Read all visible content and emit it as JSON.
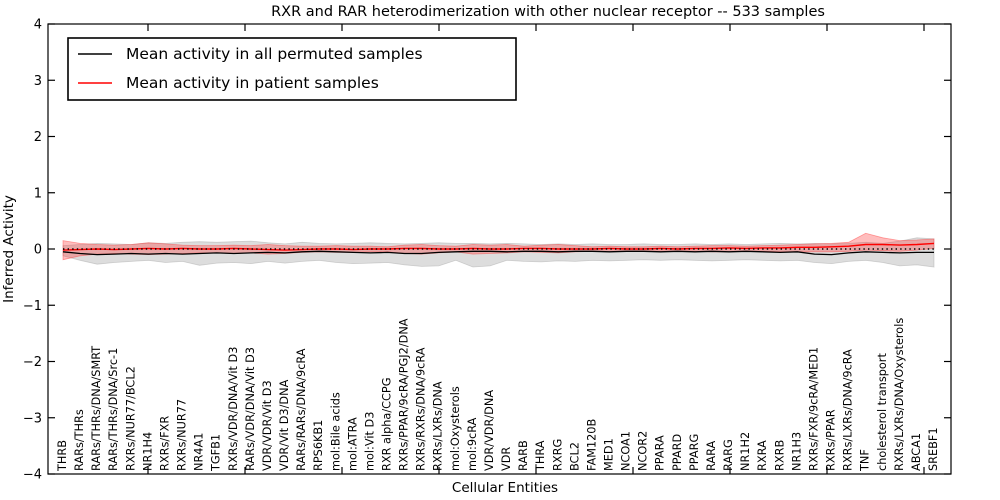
{
  "chart_data": {
    "type": "line",
    "title": "RXR and RAR heterodimerization with other nuclear receptor -- 533 samples",
    "xlabel": "Cellular Entities",
    "ylabel": "Inferred Activity",
    "ylim": [
      -4,
      4
    ],
    "yticks": [
      -4,
      -3,
      -2,
      -1,
      0,
      1,
      2,
      3,
      4
    ],
    "grid": false,
    "legend_position": "upper left",
    "categories": [
      "THRB",
      "RARs/THRs",
      "RARs/THRs/DNA/SMRT",
      "RARs/THRs/DNA/Src-1",
      "RXRs/NUR77/BCL2",
      "NR1H4",
      "RXRs/FXR",
      "RXRs/NUR77",
      "NR4A1",
      "TGFB1",
      "RXRs/VDR/DNA/Vit D3",
      "RARs/VDR/DNA/Vit D3",
      "VDR/VDR/Vit D3",
      "VDR/Vit D3/DNA",
      "RARs/RARs/DNA/9cRA",
      "RPS6KB1",
      "mol:Bile acids",
      "mol:ATRA",
      "mol:Vit D3",
      "RXR alpha/CCPG",
      "RXRs/PPAR/9cRA/PGJ2/DNA",
      "RXRs/RXRs/DNA/9cRA",
      "RXRs/LXRs/DNA",
      "mol:Oxysterols",
      "mol:9cRA",
      "VDR/VDR/DNA",
      "VDR",
      "RARB",
      "THRA",
      "RXRG",
      "BCL2",
      "FAM120B",
      "MED1",
      "NCOA1",
      "NCOR2",
      "PPARA",
      "PPARD",
      "PPARG",
      "RARA",
      "RARG",
      "NR1H2",
      "RXRA",
      "RXRB",
      "NR1H3",
      "RXRs/FXR/9cRA/MED1",
      "RXRs/PPAR",
      "RXRs/LXRs/DNA/9cRA",
      "TNF",
      "cholesterol transport",
      "RXRs/LXRs/DNA/Oxysterols",
      "ABCA1",
      "SREBF1"
    ],
    "series": [
      {
        "name": "Mean activity in all permuted samples",
        "color": "#000000",
        "values": [
          -0.05,
          -0.08,
          -0.1,
          -0.09,
          -0.08,
          -0.09,
          -0.08,
          -0.09,
          -0.08,
          -0.07,
          -0.08,
          -0.07,
          -0.06,
          -0.07,
          -0.05,
          -0.04,
          -0.05,
          -0.06,
          -0.07,
          -0.06,
          -0.08,
          -0.08,
          -0.06,
          -0.05,
          -0.04,
          -0.04,
          -0.05,
          -0.04,
          -0.04,
          -0.05,
          -0.04,
          -0.04,
          -0.05,
          -0.04,
          -0.04,
          -0.05,
          -0.04,
          -0.05,
          -0.04,
          -0.05,
          -0.04,
          -0.05,
          -0.06,
          -0.05,
          -0.09,
          -0.1,
          -0.07,
          -0.05,
          -0.06,
          -0.07,
          -0.06,
          -0.06
        ],
        "band": {
          "upper": [
            0.06,
            0.08,
            0.1,
            0.09,
            0.08,
            0.11,
            0.1,
            0.12,
            0.13,
            0.12,
            0.13,
            0.14,
            0.11,
            0.09,
            0.12,
            0.1,
            0.09,
            0.1,
            0.11,
            0.1,
            0.09,
            0.1,
            0.11,
            0.1,
            0.1,
            0.09,
            0.1,
            0.09,
            0.08,
            0.09,
            0.08,
            0.09,
            0.08,
            0.08,
            0.09,
            0.08,
            0.08,
            0.09,
            0.08,
            0.09,
            0.08,
            0.09,
            0.1,
            0.09,
            0.1,
            0.09,
            0.1,
            0.12,
            0.1,
            0.14,
            0.2,
            0.18
          ],
          "lower": [
            -0.12,
            -0.2,
            -0.27,
            -0.24,
            -0.22,
            -0.2,
            -0.24,
            -0.22,
            -0.29,
            -0.25,
            -0.24,
            -0.26,
            -0.22,
            -0.25,
            -0.22,
            -0.2,
            -0.24,
            -0.26,
            -0.25,
            -0.24,
            -0.28,
            -0.31,
            -0.3,
            -0.2,
            -0.32,
            -0.3,
            -0.2,
            -0.22,
            -0.23,
            -0.21,
            -0.22,
            -0.2,
            -0.21,
            -0.2,
            -0.19,
            -0.2,
            -0.19,
            -0.2,
            -0.21,
            -0.2,
            -0.19,
            -0.2,
            -0.21,
            -0.2,
            -0.24,
            -0.26,
            -0.22,
            -0.2,
            -0.24,
            -0.3,
            -0.28,
            -0.32
          ],
          "color": "#aaaaaa",
          "opacity": 0.4
        }
      },
      {
        "name": "Mean activity in patient samples",
        "color": "#ff0000",
        "values": [
          -0.02,
          -0.01,
          0.0,
          -0.01,
          0.0,
          0.01,
          0.0,
          0.01,
          0.0,
          0.0,
          0.01,
          0.0,
          -0.01,
          -0.02,
          -0.01,
          0.0,
          0.0,
          -0.01,
          0.0,
          0.0,
          0.01,
          0.01,
          0.0,
          0.0,
          0.01,
          0.0,
          0.0,
          0.01,
          0.01,
          0.0,
          0.0,
          0.0,
          0.01,
          0.0,
          0.0,
          0.01,
          0.0,
          0.01,
          0.01,
          0.02,
          0.01,
          0.02,
          0.02,
          0.03,
          0.03,
          0.04,
          0.05,
          0.08,
          0.08,
          0.07,
          0.08,
          0.1
        ],
        "band": {
          "upper": [
            0.15,
            0.1,
            0.08,
            0.07,
            0.08,
            0.11,
            0.09,
            0.07,
            0.06,
            0.06,
            0.07,
            0.06,
            0.08,
            0.06,
            0.05,
            0.05,
            0.06,
            0.05,
            0.05,
            0.04,
            0.07,
            0.08,
            0.06,
            0.05,
            0.08,
            0.07,
            0.08,
            0.05,
            0.07,
            0.08,
            0.06,
            0.04,
            0.05,
            0.04,
            0.04,
            0.05,
            0.04,
            0.05,
            0.06,
            0.06,
            0.05,
            0.06,
            0.07,
            0.08,
            0.09,
            0.1,
            0.12,
            0.28,
            0.2,
            0.15,
            0.16,
            0.18
          ],
          "lower": [
            -0.19,
            -0.12,
            -0.09,
            -0.08,
            -0.09,
            -0.1,
            -0.09,
            -0.08,
            -0.07,
            -0.07,
            -0.08,
            -0.07,
            -0.09,
            -0.08,
            -0.06,
            -0.05,
            -0.06,
            -0.06,
            -0.05,
            -0.05,
            -0.08,
            -0.09,
            -0.07,
            -0.05,
            -0.09,
            -0.08,
            -0.07,
            -0.05,
            -0.06,
            -0.07,
            -0.05,
            -0.04,
            -0.05,
            -0.04,
            -0.04,
            -0.04,
            -0.04,
            -0.04,
            -0.05,
            -0.05,
            -0.04,
            -0.04,
            -0.05,
            -0.05,
            -0.05,
            -0.05,
            -0.04,
            -0.02,
            -0.03,
            -0.04,
            -0.02,
            0.01
          ],
          "color": "#ff3333",
          "opacity": 0.32
        }
      }
    ],
    "reference_line": {
      "y": 0,
      "style": "dotted",
      "color": "#000000"
    }
  }
}
